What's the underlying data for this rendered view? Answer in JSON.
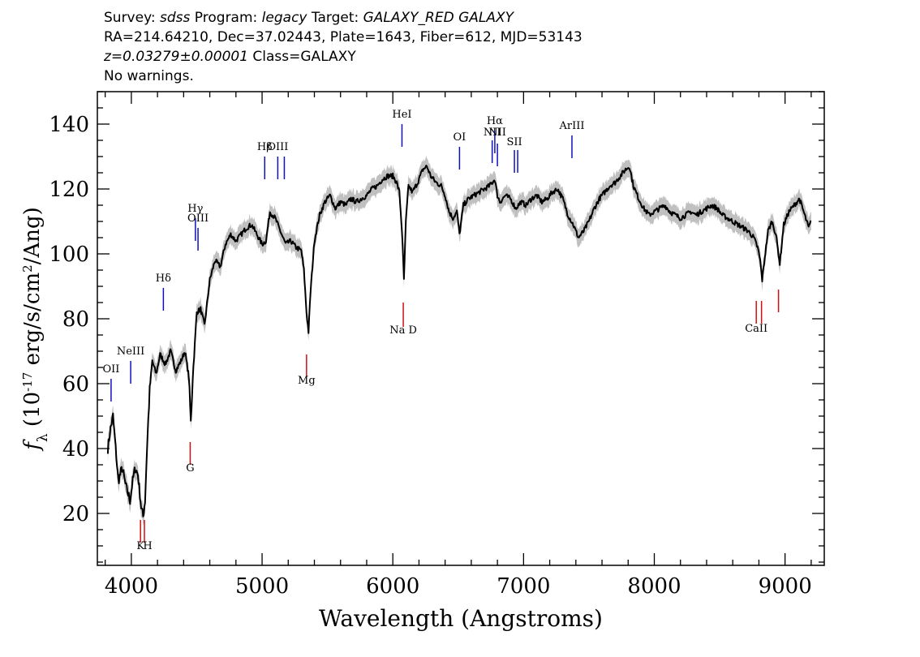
{
  "header": {
    "survey_label": "Survey: ",
    "survey": "sdss",
    "program_label": " Program: ",
    "program": "legacy",
    "target_label": " Target: ",
    "target": "GALAXY_RED GALAXY",
    "line2": "RA=214.64210, Dec=37.02443, Plate=1643, Fiber=612, MJD=53143",
    "redshift": "z=0.03279±0.00001",
    "class_text": " Class=GALAXY",
    "warnings": "No warnings."
  },
  "chart_data": {
    "type": "line",
    "xlabel": "Wavelength (Angstroms)",
    "ylabel_parts": [
      "f",
      "λ",
      " (10",
      "-17",
      " erg/s/cm",
      "2",
      "/Ang)"
    ],
    "xlim": [
      3740,
      9300
    ],
    "ylim": [
      4,
      150
    ],
    "xticks": [
      4000,
      5000,
      6000,
      7000,
      8000,
      9000
    ],
    "yticks": [
      20,
      40,
      60,
      80,
      100,
      120,
      140
    ],
    "x_minor_step": 200,
    "y_minor_step": 5,
    "grid": false,
    "series_color": "#000000",
    "error_band_color": "#c0c0c0",
    "emission_color": "#1010c0",
    "absorption_color": "#d01010",
    "spectrum": [
      [
        3820,
        40
      ],
      [
        3840,
        46
      ],
      [
        3860,
        50
      ],
      [
        3880,
        40
      ],
      [
        3900,
        30
      ],
      [
        3930,
        34
      ],
      [
        3960,
        28
      ],
      [
        3990,
        24
      ],
      [
        4010,
        30
      ],
      [
        4030,
        34
      ],
      [
        4050,
        32
      ],
      [
        4075,
        22
      ],
      [
        4090,
        19
      ],
      [
        4105,
        24
      ],
      [
        4120,
        40
      ],
      [
        4140,
        58
      ],
      [
        4160,
        67
      ],
      [
        4190,
        63
      ],
      [
        4220,
        69
      ],
      [
        4260,
        66
      ],
      [
        4300,
        70
      ],
      [
        4340,
        64
      ],
      [
        4380,
        67
      ],
      [
        4410,
        70
      ],
      [
        4440,
        62
      ],
      [
        4455,
        48
      ],
      [
        4470,
        62
      ],
      [
        4500,
        82
      ],
      [
        4530,
        83
      ],
      [
        4560,
        78
      ],
      [
        4600,
        92
      ],
      [
        4640,
        98
      ],
      [
        4680,
        96
      ],
      [
        4720,
        103
      ],
      [
        4760,
        106
      ],
      [
        4800,
        104
      ],
      [
        4840,
        106
      ],
      [
        4880,
        108
      ],
      [
        4920,
        109
      ],
      [
        4960,
        106
      ],
      [
        5000,
        103
      ],
      [
        5030,
        104
      ],
      [
        5060,
        113
      ],
      [
        5100,
        111
      ],
      [
        5140,
        107
      ],
      [
        5180,
        103
      ],
      [
        5220,
        104
      ],
      [
        5260,
        102
      ],
      [
        5300,
        101
      ],
      [
        5320,
        95
      ],
      [
        5340,
        82
      ],
      [
        5355,
        76
      ],
      [
        5370,
        88
      ],
      [
        5400,
        104
      ],
      [
        5440,
        112
      ],
      [
        5480,
        116
      ],
      [
        5520,
        118
      ],
      [
        5560,
        114
      ],
      [
        5600,
        116
      ],
      [
        5640,
        115
      ],
      [
        5680,
        117
      ],
      [
        5720,
        116
      ],
      [
        5760,
        117
      ],
      [
        5800,
        118
      ],
      [
        5840,
        120
      ],
      [
        5880,
        121
      ],
      [
        5920,
        123
      ],
      [
        5960,
        124
      ],
      [
        6000,
        124
      ],
      [
        6030,
        122
      ],
      [
        6050,
        119
      ],
      [
        6070,
        107
      ],
      [
        6085,
        92
      ],
      [
        6100,
        110
      ],
      [
        6120,
        121
      ],
      [
        6150,
        119
      ],
      [
        6190,
        122
      ],
      [
        6230,
        126
      ],
      [
        6260,
        127
      ],
      [
        6290,
        124
      ],
      [
        6330,
        122
      ],
      [
        6370,
        121
      ],
      [
        6400,
        118
      ],
      [
        6430,
        113
      ],
      [
        6460,
        111
      ],
      [
        6490,
        113
      ],
      [
        6510,
        106
      ],
      [
        6540,
        115
      ],
      [
        6580,
        117
      ],
      [
        6620,
        118
      ],
      [
        6660,
        119
      ],
      [
        6700,
        120
      ],
      [
        6740,
        121
      ],
      [
        6780,
        123
      ],
      [
        6800,
        118
      ],
      [
        6820,
        116
      ],
      [
        6860,
        118
      ],
      [
        6900,
        117
      ],
      [
        6940,
        114
      ],
      [
        6980,
        116
      ],
      [
        7020,
        115
      ],
      [
        7060,
        117
      ],
      [
        7100,
        118
      ],
      [
        7140,
        116
      ],
      [
        7180,
        117
      ],
      [
        7220,
        119
      ],
      [
        7260,
        120
      ],
      [
        7300,
        117
      ],
      [
        7340,
        112
      ],
      [
        7380,
        109
      ],
      [
        7420,
        105
      ],
      [
        7460,
        107
      ],
      [
        7500,
        110
      ],
      [
        7540,
        114
      ],
      [
        7580,
        117
      ],
      [
        7620,
        119
      ],
      [
        7660,
        121
      ],
      [
        7700,
        122
      ],
      [
        7740,
        124
      ],
      [
        7780,
        126
      ],
      [
        7810,
        127
      ],
      [
        7840,
        121
      ],
      [
        7880,
        117
      ],
      [
        7920,
        114
      ],
      [
        7960,
        112
      ],
      [
        8000,
        113
      ],
      [
        8040,
        114
      ],
      [
        8080,
        115
      ],
      [
        8120,
        113
      ],
      [
        8160,
        112
      ],
      [
        8200,
        111
      ],
      [
        8240,
        112
      ],
      [
        8280,
        113
      ],
      [
        8320,
        112
      ],
      [
        8360,
        113
      ],
      [
        8400,
        114
      ],
      [
        8440,
        115
      ],
      [
        8480,
        114
      ],
      [
        8520,
        112
      ],
      [
        8560,
        111
      ],
      [
        8600,
        110
      ],
      [
        8640,
        109
      ],
      [
        8680,
        108
      ],
      [
        8720,
        107
      ],
      [
        8760,
        105
      ],
      [
        8790,
        102
      ],
      [
        8810,
        98
      ],
      [
        8825,
        92
      ],
      [
        8845,
        99
      ],
      [
        8870,
        107
      ],
      [
        8900,
        110
      ],
      [
        8930,
        106
      ],
      [
        8960,
        97
      ],
      [
        8990,
        109
      ],
      [
        9030,
        113
      ],
      [
        9070,
        115
      ],
      [
        9110,
        117
      ],
      [
        9150,
        112
      ],
      [
        9180,
        108
      ],
      [
        9200,
        110
      ]
    ],
    "emission_lines": [
      {
        "label": "OII",
        "x": 3845,
        "y0": 54.5,
        "y1": 61.5,
        "label_y": 63.5
      },
      {
        "label": "NeIII",
        "x": 3995,
        "y0": 60,
        "y1": 67,
        "label_y": 69
      },
      {
        "label": "Hδ",
        "x": 4245,
        "y0": 82.5,
        "y1": 89.5,
        "label_y": 91.5
      },
      {
        "label": "Hγ",
        "x": 4490,
        "y0": 104,
        "y1": 111,
        "label_y": 113
      },
      {
        "label": "OIII",
        "x": 4510,
        "y0": 101,
        "y1": 108,
        "label_y": 110
      },
      {
        "label": "Hβ",
        "x": 5020,
        "y0": 123,
        "y1": 130,
        "label_y": 132
      },
      {
        "label": "OIII",
        "x": 5120,
        "y0": 123,
        "y1": 130,
        "label_y": 132
      },
      {
        "label": "",
        "x": 5170,
        "y0": 123,
        "y1": 130,
        "label_y": 132
      },
      {
        "label": "HeI",
        "x": 6070,
        "y0": 133,
        "y1": 140,
        "label_y": 142
      },
      {
        "label": "OI",
        "x": 6510,
        "y0": 126,
        "y1": 133,
        "label_y": 135
      },
      {
        "label": "NII",
        "x": 6760,
        "y0": 128,
        "y1": 135,
        "label_y": 136.5
      },
      {
        "label": "Hα",
        "x": 6780,
        "y0": 131,
        "y1": 138,
        "label_y": 140
      },
      {
        "label": "NII",
        "x": 6800,
        "y0": 127,
        "y1": 134,
        "label_y": 136.5
      },
      {
        "label": "SII",
        "x": 6930,
        "y0": 125,
        "y1": 132,
        "label_y": 133.5
      },
      {
        "label": "",
        "x": 6955,
        "y0": 125,
        "y1": 132,
        "label_y": 133.5
      },
      {
        "label": "ArIII",
        "x": 7370,
        "y0": 129.5,
        "y1": 136.5,
        "label_y": 138.5
      }
    ],
    "absorption_lines": [
      {
        "label": "K",
        "x": 4070,
        "y0": 11,
        "y1": 18,
        "label_y": 9,
        "label_dx": 0
      },
      {
        "label": "H",
        "x": 4100,
        "y0": 11,
        "y1": 18,
        "label_y": 9,
        "label_dx": 4
      },
      {
        "label": "G",
        "x": 4450,
        "y0": 35,
        "y1": 42,
        "label_y": 33,
        "label_dx": 0
      },
      {
        "label": "Mg",
        "x": 5340,
        "y0": 62,
        "y1": 69,
        "label_y": 60,
        "label_dx": 0
      },
      {
        "label": "Na D",
        "x": 6080,
        "y0": 77.5,
        "y1": 85,
        "label_y": 75.5,
        "label_dx": 0
      },
      {
        "label": "CaII",
        "x": 8780,
        "y0": 78.5,
        "y1": 85.5,
        "label_y": 76,
        "label_dx": 0
      },
      {
        "label": "",
        "x": 8820,
        "y0": 78.5,
        "y1": 85.5,
        "label_y": 76,
        "label_dx": 0
      },
      {
        "label": "",
        "x": 8950,
        "y0": 82,
        "y1": 89,
        "label_y": 80,
        "label_dx": 0
      }
    ]
  }
}
